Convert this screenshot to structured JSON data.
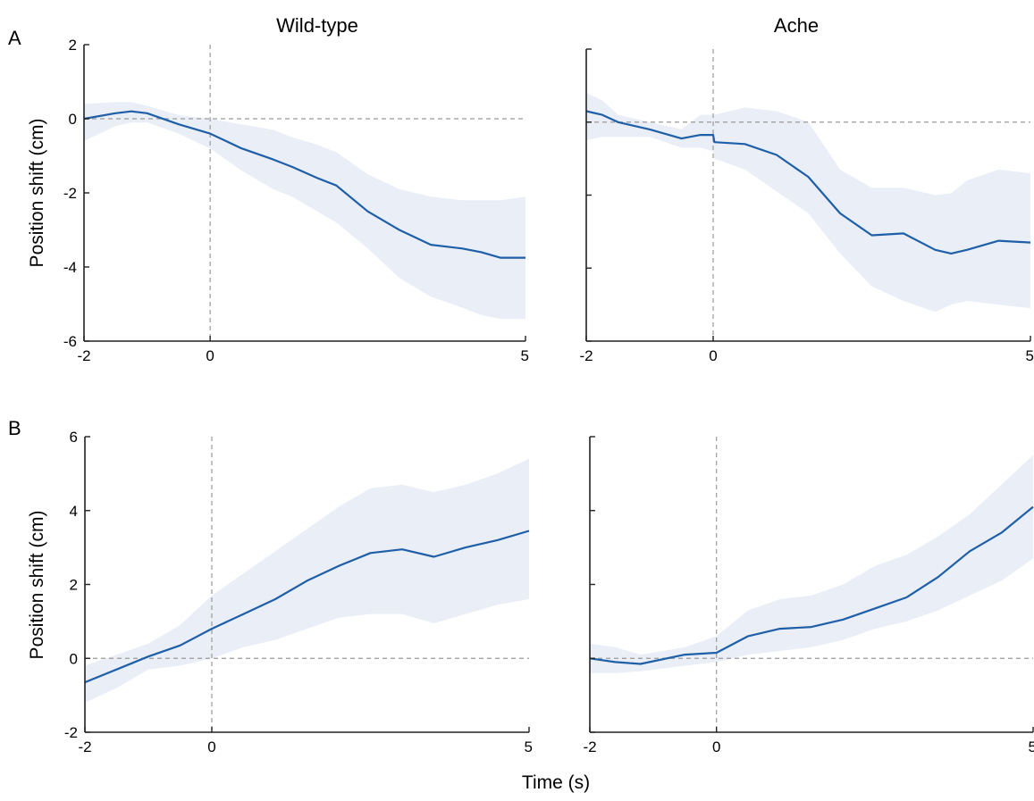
{
  "figure": {
    "column_titles": [
      "Wild-type",
      "Ache"
    ],
    "row_letters": [
      "A",
      "B"
    ],
    "ylabel": "Position shift (cm)",
    "xlabel": "Time (s)"
  },
  "colors": {
    "line": "#1f5fa8",
    "band": "#e9eef7",
    "axis": "#222222",
    "ref": "#9a9a9a"
  },
  "chart_data": [
    {
      "type": "line",
      "panel": "A-Wild-type",
      "title": "Wild-type",
      "ylabel": "Position shift (cm)",
      "xlim": [
        -2,
        5
      ],
      "ylim": [
        -6,
        2
      ],
      "xticks": [
        -2,
        0,
        5
      ],
      "yticks": [
        -6,
        -4,
        -2,
        0,
        2
      ],
      "show_tick_labels": true,
      "error_band": true,
      "x": [
        -2,
        -1.5,
        -1.25,
        -1,
        -0.5,
        0,
        0.5,
        1,
        1.3,
        1.7,
        2,
        2.5,
        3,
        3.5,
        4,
        4.3,
        4.6,
        5
      ],
      "y": [
        0,
        0.15,
        0.2,
        0.15,
        -0.15,
        -0.4,
        -0.8,
        -1.1,
        -1.3,
        -1.6,
        -1.8,
        -2.5,
        -3,
        -3.4,
        -3.5,
        -3.6,
        -3.75,
        -3.75
      ],
      "lower": [
        -0.6,
        -0.2,
        -0.1,
        -0.1,
        -0.4,
        -0.8,
        -1.4,
        -1.9,
        -2.1,
        -2.5,
        -2.8,
        -3.5,
        -4.3,
        -4.8,
        -5.1,
        -5.3,
        -5.4,
        -5.4
      ],
      "upper": [
        0.4,
        0.45,
        0.45,
        0.35,
        0.1,
        0.0,
        -0.15,
        -0.3,
        -0.5,
        -0.7,
        -0.9,
        -1.5,
        -1.9,
        -2.1,
        -2.2,
        -2.2,
        -2.2,
        -2.1
      ]
    },
    {
      "type": "line",
      "panel": "A-Ache",
      "title": "Ache",
      "xlim": [
        -2,
        5
      ],
      "ylim": [
        -6,
        2
      ],
      "xticks": [
        -2,
        0,
        5
      ],
      "yticks": [
        -6,
        -4,
        -2,
        0,
        2
      ],
      "show_tick_labels": false,
      "error_band": true,
      "x": [
        -2,
        -1.75,
        -1.5,
        -1,
        -0.5,
        -0.2,
        0,
        0.02,
        0.5,
        1,
        1.5,
        2,
        2.5,
        3,
        3.5,
        3.75,
        4,
        4.5,
        5
      ],
      "y": [
        0.3,
        0.2,
        0.0,
        -0.2,
        -0.45,
        -0.35,
        -0.35,
        -0.55,
        -0.6,
        -0.9,
        -1.5,
        -2.5,
        -3.1,
        -3.05,
        -3.5,
        -3.6,
        -3.5,
        -3.25,
        -3.3
      ],
      "lower": [
        -0.5,
        -0.4,
        -0.4,
        -0.4,
        -0.7,
        -0.7,
        -0.8,
        -1.0,
        -1.3,
        -1.9,
        -2.5,
        -3.6,
        -4.5,
        -4.9,
        -5.2,
        -5.0,
        -4.9,
        -5.0,
        -5.1
      ],
      "upper": [
        0.8,
        0.6,
        0.2,
        0.0,
        -0.2,
        0.2,
        0.2,
        0.2,
        0.4,
        0.3,
        0.0,
        -1.3,
        -1.8,
        -1.8,
        -2.0,
        -1.95,
        -1.6,
        -1.3,
        -1.4
      ]
    },
    {
      "type": "line",
      "panel": "B-Wild-type",
      "ylabel": "Position shift (cm)",
      "xlim": [
        -2,
        5
      ],
      "ylim": [
        -2,
        6
      ],
      "xticks": [
        -2,
        0,
        5
      ],
      "yticks": [
        -2,
        0,
        2,
        4,
        6
      ],
      "show_tick_labels": true,
      "error_band": true,
      "x": [
        -2,
        -1.5,
        -1,
        -0.5,
        0,
        0.5,
        1,
        1.5,
        2,
        2.5,
        3,
        3.5,
        4,
        4.5,
        5
      ],
      "y": [
        -0.65,
        -0.3,
        0.05,
        0.35,
        0.8,
        1.2,
        1.6,
        2.1,
        2.5,
        2.85,
        2.95,
        2.75,
        3.0,
        3.2,
        3.45
      ],
      "lower": [
        -1.2,
        -0.8,
        -0.3,
        -0.2,
        0.0,
        0.3,
        0.5,
        0.8,
        1.1,
        1.2,
        1.2,
        0.95,
        1.2,
        1.45,
        1.6
      ],
      "upper": [
        -0.2,
        0.1,
        0.4,
        0.9,
        1.7,
        2.3,
        2.9,
        3.5,
        4.1,
        4.6,
        4.7,
        4.5,
        4.7,
        5.0,
        5.4
      ]
    },
    {
      "type": "line",
      "panel": "B-Ache",
      "xlim": [
        -2,
        5
      ],
      "ylim": [
        -2,
        6
      ],
      "xticks": [
        -2,
        0,
        5
      ],
      "yticks": [
        -2,
        0,
        2,
        4,
        6
      ],
      "show_tick_labels": false,
      "error_band": true,
      "x": [
        -2,
        -1.6,
        -1.2,
        -0.5,
        0,
        0.5,
        1,
        1.5,
        2,
        2.5,
        3,
        3.5,
        4,
        4.5,
        5
      ],
      "y": [
        0.0,
        -0.1,
        -0.15,
        0.1,
        0.15,
        0.6,
        0.8,
        0.85,
        1.05,
        1.35,
        1.65,
        2.2,
        2.9,
        3.4,
        4.1
      ],
      "lower": [
        -0.4,
        -0.4,
        -0.35,
        -0.2,
        -0.1,
        0.1,
        0.2,
        0.3,
        0.5,
        0.8,
        1.0,
        1.3,
        1.7,
        2.1,
        2.7
      ],
      "upper": [
        0.4,
        0.3,
        0.1,
        0.3,
        0.6,
        1.3,
        1.6,
        1.7,
        2.0,
        2.5,
        2.8,
        3.3,
        3.9,
        4.7,
        5.5
      ]
    }
  ]
}
